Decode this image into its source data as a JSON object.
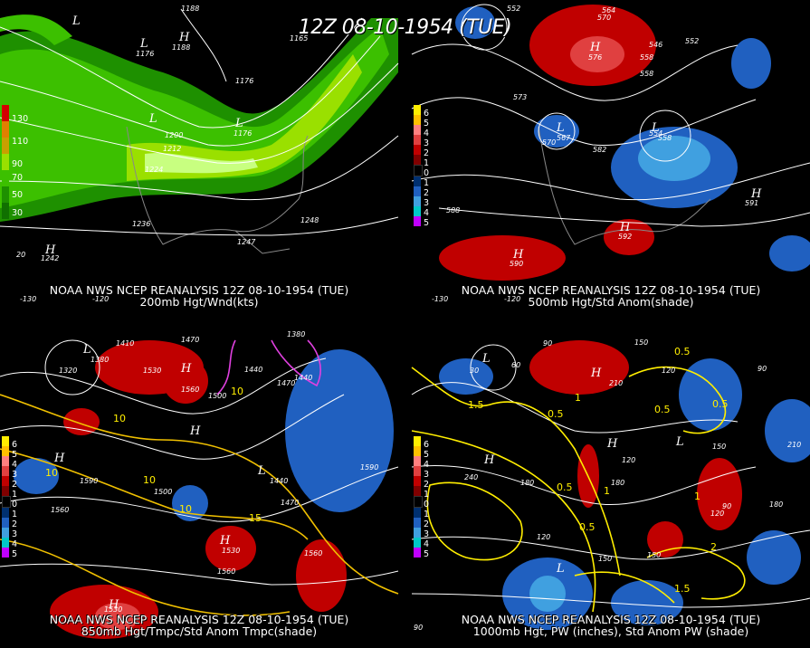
{
  "title": "12Z 08-10-1954 (TUE)",
  "panels": [
    {
      "caption_line1": "NOAA NWS NCEP REANALYSIS 12Z 08-10-1954 (TUE)",
      "caption_line2": "200mb Hgt/Wnd(kts)",
      "legend": [
        "130",
        "110",
        "90",
        "70",
        "50",
        "30"
      ],
      "legend_colors": [
        "#d40000",
        "#e08000",
        "#c8a000",
        "#9ae000",
        "#3cc000",
        "#1e9000",
        "#107000"
      ],
      "contour_labels": [
        "1188",
        "1176",
        "1200",
        "1212",
        "1224",
        "1236",
        "1242",
        "1248",
        "1247",
        "1176",
        "1165",
        "1188",
        "1176"
      ],
      "axis_labels": [
        "-130",
        "-120",
        "20"
      ],
      "highs": [
        "H",
        "H"
      ],
      "lows": [
        "L",
        "L",
        "L",
        "L"
      ]
    },
    {
      "caption_line1": "NOAA NWS NCEP REANALYSIS 12Z 08-10-1954 (TUE)",
      "caption_line2": "500mb Hgt/Std Anom(shade)",
      "legend": [
        "6",
        "5",
        "4",
        "3",
        "2",
        "1",
        "0",
        "1",
        "2",
        "3",
        "4",
        "5"
      ],
      "legend_colors": [
        "#ffee00",
        "#ffc000",
        "#ff8080",
        "#e04040",
        "#c00000",
        "#800000",
        "#000000",
        "#003070",
        "#2060c0",
        "#40a0e0",
        "#00c8c8",
        "#8040c0",
        "#c000ff"
      ],
      "contour_labels": [
        "552",
        "570",
        "564",
        "546",
        "552",
        "558",
        "558",
        "573",
        "576",
        "582",
        "567",
        "570",
        "554",
        "558",
        "588",
        "591",
        "592",
        "590"
      ],
      "axis_labels": [
        "-130",
        "-120"
      ]
    },
    {
      "caption_line1": "NOAA NWS NCEP REANALYSIS 12Z 08-10-1954 (TUE)",
      "caption_line2": "850mb Hgt/Tmpc/Std Anom Tmpc(shade)",
      "legend": [
        "6",
        "5",
        "4",
        "3",
        "2",
        "1",
        "0",
        "1",
        "2",
        "3",
        "4",
        "5"
      ],
      "contour_labels": [
        "1410",
        "1470",
        "1380",
        "1320",
        "1380",
        "1530",
        "1560",
        "1500",
        "1440",
        "1470",
        "1440",
        "1590",
        "1590",
        "1560",
        "1500",
        "1560",
        "1530",
        "1440",
        "1470",
        "1560",
        "1530"
      ],
      "temp_labels": [
        "10",
        "10",
        "10",
        "10",
        "15",
        "10"
      ]
    },
    {
      "caption_line1": "NOAA NWS NCEP REANALYSIS 12Z 08-10-1954 (TUE)",
      "caption_line2": "1000mb Hgt, PW (inches), Std Anom PW (shade)",
      "legend": [
        "6",
        "5",
        "4",
        "3",
        "2",
        "1",
        "0",
        "1",
        "2",
        "3",
        "4",
        "5"
      ],
      "contour_labels": [
        "90",
        "60",
        "30",
        "150",
        "120",
        "210",
        "90",
        "240",
        "180",
        "150",
        "120",
        "180",
        "210",
        "120",
        "90",
        "180",
        "150",
        "120",
        "150",
        "90"
      ],
      "pw_labels": [
        "1.5",
        "0.5",
        "0.5",
        "1",
        "0.5",
        "0.5",
        "1",
        "1.5",
        "0.5",
        "0.5",
        "1",
        "2"
      ]
    }
  ]
}
